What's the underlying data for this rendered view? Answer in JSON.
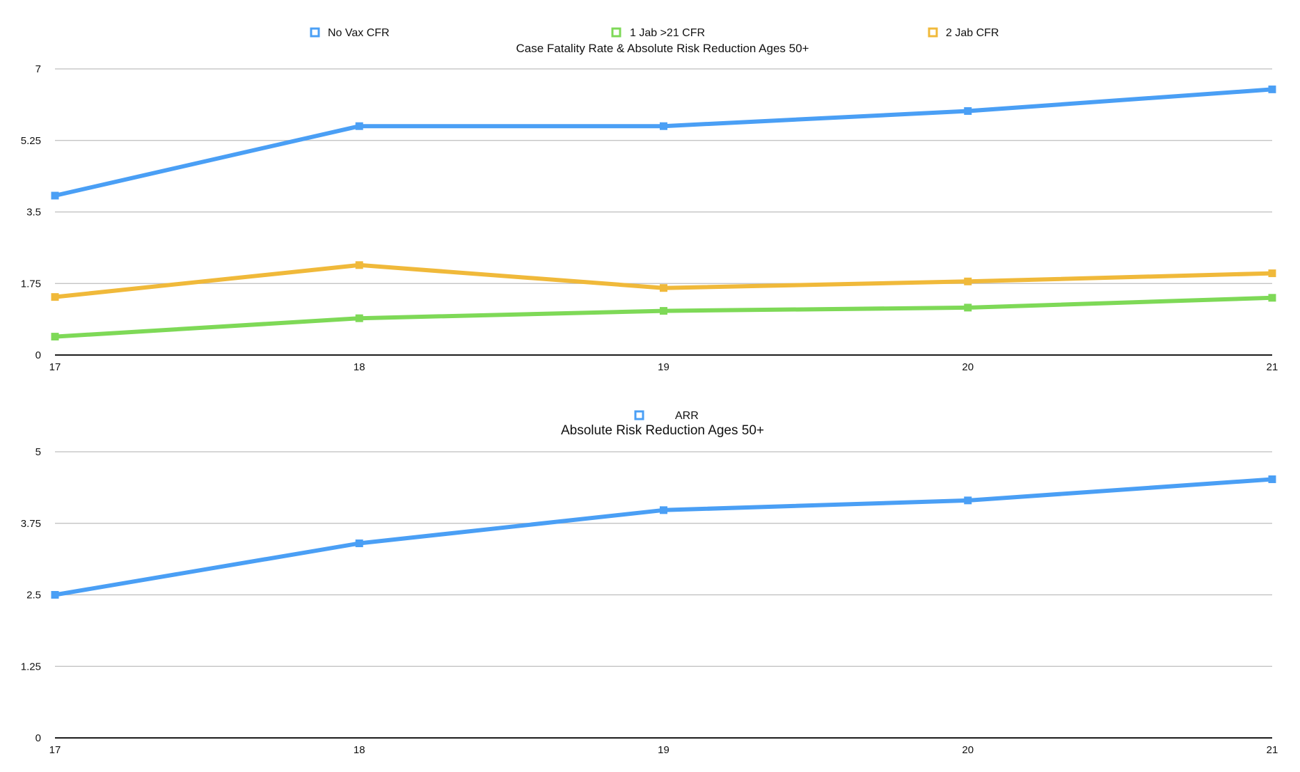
{
  "chart_data": [
    {
      "type": "line",
      "title": "Case Fatality Rate & Absolute Risk Reduction Ages 50+",
      "xlabel": "",
      "ylabel": "",
      "categories": [
        "17",
        "18",
        "19",
        "20",
        "21"
      ],
      "ylim": [
        0,
        7
      ],
      "yticks": [
        "0",
        "1.75",
        "3.5",
        "5.25",
        "7"
      ],
      "grid": true,
      "legend_position": "top",
      "series": [
        {
          "name": "No Vax CFR",
          "color": "#4a9ff5",
          "values": [
            3.9,
            5.6,
            5.6,
            5.97,
            6.5
          ]
        },
        {
          "name": "1 Jab >21 CFR",
          "color": "#7ed957",
          "values": [
            0.45,
            0.9,
            1.08,
            1.16,
            1.4
          ]
        },
        {
          "name": "2 Jab CFR",
          "color": "#f0b93a",
          "values": [
            1.42,
            2.2,
            1.64,
            1.8,
            2.0
          ]
        }
      ]
    },
    {
      "type": "line",
      "title": "Absolute Risk Reduction Ages 50+",
      "xlabel": "",
      "ylabel": "",
      "categories": [
        "17",
        "18",
        "19",
        "20",
        "21"
      ],
      "ylim": [
        0,
        5
      ],
      "yticks": [
        "0",
        "1.25",
        "2.5",
        "3.75",
        "5"
      ],
      "grid": true,
      "legend_position": "top",
      "series": [
        {
          "name": "ARR",
          "color": "#4a9ff5",
          "values": [
            2.5,
            3.4,
            3.98,
            4.15,
            4.52
          ]
        }
      ]
    }
  ]
}
